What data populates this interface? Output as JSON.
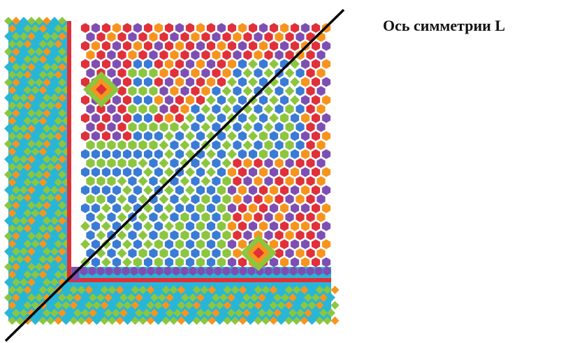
{
  "axis_label": "Ось симметрии L",
  "colors": {
    "blue": "#3a7bd5",
    "green": "#8cc63f",
    "orange": "#f7941d",
    "cyan": "#29b6d6",
    "red": "#e0303a",
    "purple": "#7e4fb3",
    "axis": "#000000"
  }
}
